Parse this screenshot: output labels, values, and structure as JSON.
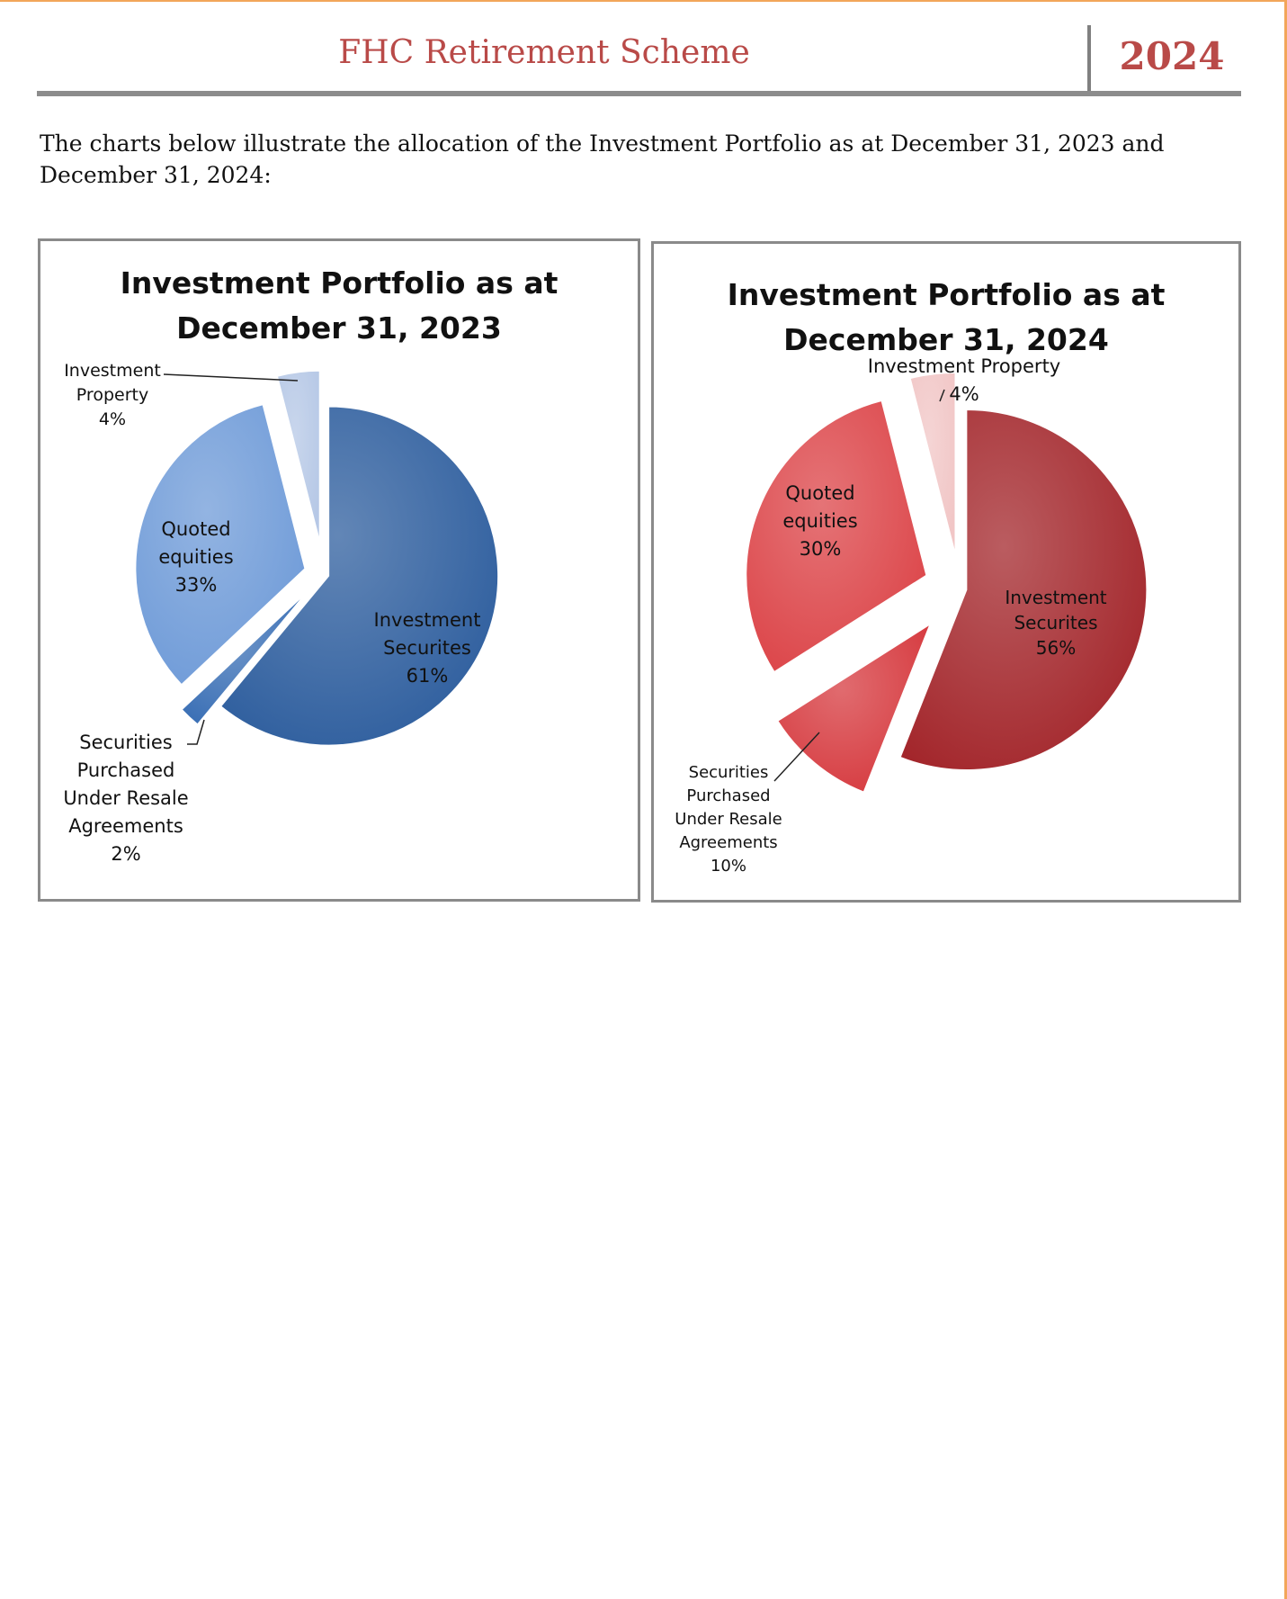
{
  "header": {
    "title": "FHC Retirement Scheme",
    "year": "2024"
  },
  "intro": "The charts below illustrate the allocation of the Investment Portfolio as at December 31, 2023 and December 31, 2024:",
  "chart_data": [
    {
      "type": "pie",
      "title": [
        "Investment Portfolio as at",
        "December 31, 2023"
      ],
      "slices": [
        {
          "label": [
            "Investment",
            "Securites"
          ],
          "value": 61,
          "value_label": "61%",
          "color": "#2e5e9e"
        },
        {
          "label": [
            "Securities",
            "Purchased",
            "Under Resale",
            "Agreements"
          ],
          "value": 2,
          "value_label": "2%",
          "color": "#3a6fb5"
        },
        {
          "label": [
            "Quoted",
            "equities"
          ],
          "value": 33,
          "value_label": "33%",
          "color": "#6f9bd8"
        },
        {
          "label": [
            "Investment",
            "Property"
          ],
          "value": 4,
          "value_label": "4%",
          "color": "#b6c8e6"
        }
      ]
    },
    {
      "type": "pie",
      "title": [
        "Investment Portfolio as at",
        "December 31, 2024"
      ],
      "slices": [
        {
          "label": [
            "Investment",
            "Securites"
          ],
          "value": 56,
          "value_label": "56%",
          "color": "#a3262b"
        },
        {
          "label": [
            "Securities",
            "Purchased",
            "Under Resale",
            "Agreements"
          ],
          "value": 10,
          "value_label": "10%",
          "color": "#d63a3f"
        },
        {
          "label": [
            "Quoted",
            "equities"
          ],
          "value": 30,
          "value_label": "30%",
          "color": "#dc4549"
        },
        {
          "label": [
            "Investment Property"
          ],
          "value": 4,
          "value_label": "4%",
          "color": "#f1c6c6"
        }
      ]
    }
  ]
}
